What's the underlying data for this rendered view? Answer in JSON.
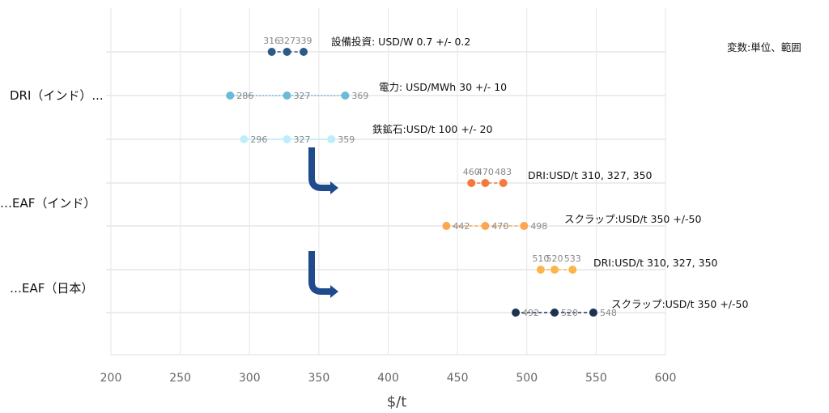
{
  "chart_data": {
    "type": "scatter",
    "title": "",
    "xlabel": "$/t",
    "ylabel": "",
    "xlim": [
      200,
      600
    ],
    "xticks": [
      200,
      250,
      300,
      350,
      400,
      450,
      500,
      550,
      600
    ],
    "grid": true,
    "legend_title": "変数:単位、範囲",
    "categories": [
      "DRI（インド）...",
      "…EAF（インド）",
      "…EAF（日本）"
    ],
    "series": [
      {
        "name": "設備投資: USD/W 0.7 +/- 0.2",
        "group": 0,
        "values": [
          316,
          327,
          339
        ],
        "color": "#2d5b88",
        "label_pos": "above",
        "line": "dashed"
      },
      {
        "name": "電力: USD/MWh 30 +/- 10",
        "group": 0,
        "values": [
          286,
          327,
          369
        ],
        "color": "#6db9d8",
        "label_pos": "right",
        "line": "dotted"
      },
      {
        "name": "鉄鉱石:USD/t 100 +/- 20",
        "group": 0,
        "values": [
          296,
          327,
          359
        ],
        "color": "#bdeefb",
        "label_pos": "right",
        "line": "solid"
      },
      {
        "name": "DRI:USD/t 310, 327, 350",
        "group": 1,
        "values": [
          460,
          470,
          483
        ],
        "color": "#f5793a",
        "label_pos": "above",
        "line": "dashed"
      },
      {
        "name": "スクラップ:USD/t 350 +/-50",
        "group": 1,
        "values": [
          442,
          470,
          498
        ],
        "color": "#fca650",
        "label_pos": "right",
        "line": "dashed"
      },
      {
        "name": "DRI:USD/t 310, 327, 350",
        "group": 2,
        "values": [
          510,
          520,
          533
        ],
        "color": "#fbb548",
        "label_pos": "above",
        "line": "dashed"
      },
      {
        "name": "スクラップ:USD/t 350 +/-50",
        "group": 2,
        "values": [
          492,
          520,
          548
        ],
        "color": "#1c3350",
        "label_pos": "right",
        "line": "dashed"
      }
    ],
    "arrow_color": "#1f4b8c"
  }
}
